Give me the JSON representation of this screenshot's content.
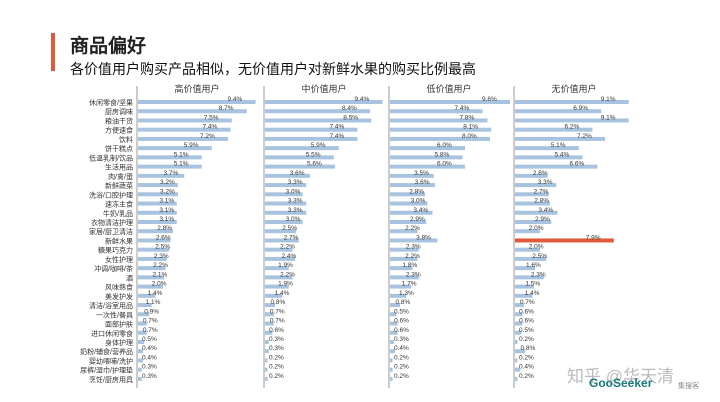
{
  "page": {
    "title": "商品偏好",
    "subtitle": "各价值用户购买产品相似，无价值用户对新鲜水果的购买比例最高",
    "watermark": "知乎 @华天清",
    "brand": "GooSeeker",
    "brand_sub": "集搜客"
  },
  "colors": {
    "bar": "#a7c3df",
    "highlight": "#e0593a",
    "accent": "#e0593a",
    "divider": "#9a9a9a"
  },
  "chart_data": {
    "type": "bar",
    "orientation": "horizontal",
    "categories": [
      "休闲零食/坚果",
      "厨房调味",
      "粮油干货",
      "方便速食",
      "饮料",
      "饼干糕点",
      "低温乳制/饮品",
      "生活用品",
      "肉/禽/蛋",
      "新鲜蔬菜",
      "洗浴/口腔护理",
      "速冻主食",
      "牛奶/乳品",
      "衣物清洁护理",
      "家居/厨卫清洁",
      "新鲜水果",
      "糖果巧克力",
      "女性护理",
      "冲调/咖啡/茶",
      "酒",
      "风味熟食",
      "美发护发",
      "清洁/浴室用品",
      "一次性/餐具",
      "面部护肤",
      "进口休闲零食",
      "身体护理",
      "奶粉/辅食/营养品",
      "婴幼喂哺/洗护",
      "尿裤/湿巾/护理垫",
      "烹饪/厨房用具"
    ],
    "series": [
      {
        "name": "高价值用户",
        "values": [
          9.4,
          8.7,
          7.5,
          7.4,
          7.2,
          5.9,
          5.1,
          5.1,
          3.7,
          3.2,
          3.2,
          3.1,
          3.1,
          3.1,
          2.8,
          2.6,
          2.5,
          2.3,
          2.2,
          2.1,
          2.0,
          1.4,
          1.1,
          0.9,
          0.7,
          0.7,
          0.5,
          0.4,
          0.4,
          0.3,
          0.3
        ]
      },
      {
        "name": "中价值用户",
        "values": [
          9.4,
          8.4,
          8.5,
          7.4,
          7.4,
          5.9,
          5.5,
          5.6,
          3.6,
          3.3,
          3.0,
          3.3,
          3.3,
          3.0,
          2.5,
          2.7,
          2.2,
          2.4,
          1.9,
          2.2,
          1.9,
          1.4,
          0.8,
          0.7,
          0.7,
          0.6,
          0.3,
          0.3,
          0.2,
          0.2,
          0.2
        ]
      },
      {
        "name": "低价值用户",
        "values": [
          9.6,
          7.4,
          7.8,
          8.1,
          8.0,
          6.0,
          5.8,
          6.0,
          3.5,
          3.6,
          2.8,
          3.0,
          3.4,
          2.9,
          2.2,
          3.8,
          2.3,
          2.2,
          1.8,
          2.3,
          1.7,
          1.3,
          0.8,
          0.5,
          0.6,
          0.6,
          0.3,
          0.4,
          0.2,
          0.2,
          0.2
        ]
      },
      {
        "name": "无价值用户",
        "values": [
          9.1,
          6.9,
          9.1,
          6.2,
          7.2,
          5.1,
          5.4,
          6.6,
          2.6,
          3.3,
          2.7,
          2.8,
          3.4,
          2.9,
          2.0,
          7.9,
          2.0,
          2.5,
          1.6,
          2.3,
          1.5,
          1.4,
          0.7,
          0.6,
          0.6,
          0.5,
          0.2,
          0.8,
          0.2,
          0.4,
          0.2
        ]
      }
    ],
    "value_labels": [
      [
        "9.4%",
        "8.7%",
        "7.5%",
        "7.4%",
        "7.2%",
        "5.9%",
        "5.1%",
        "5.1%",
        "3.7%",
        "3.2%",
        "3.2%",
        "3.1%",
        "3.1%",
        "3.1%",
        "2.8%",
        "2.6%",
        "2.5%",
        "2.3%",
        "2.2%",
        "2.1%",
        "2.0%",
        "1.4%",
        "1.1%",
        "0.9%",
        "0.7%",
        "0.7%",
        "0.5%",
        "0.4%",
        "0.4%",
        "0.3%",
        "0.3%"
      ],
      [
        "9.4%",
        "8.4%",
        "8.5%",
        "7.4%",
        "7.4%",
        "5.9%",
        "5.5%",
        "5.6%",
        "3.6%",
        "3.3%",
        "3.0%",
        "3.3%",
        "3.3%",
        "3.0%",
        "2.5%",
        "2.7%",
        "2.2%",
        "2.4%",
        "1.9%",
        "2.2%",
        "1.9%",
        "1.4%",
        "0.8%",
        "0.7%",
        "0.7%",
        "0.6%",
        "0.3%",
        "0.3%",
        "0.2%",
        "0.2%",
        "0.2%"
      ],
      [
        "9.6%",
        "7.4%",
        "7.8%",
        "8.1%",
        "8.0%",
        "6.0%",
        "5.8%",
        "6.0%",
        "3.5%",
        "3.6%",
        "2.8%",
        "3.0%",
        "3.4%",
        "2.9%",
        "2.2%",
        "3.8%",
        "2.3%",
        "2.2%",
        "1.8%",
        "2.3%",
        "1.7%",
        "1.3%",
        "0.8%",
        "0.5%",
        "0.6%",
        "0.6%",
        "0.3%",
        "0.4%",
        "0.2%",
        "0.2%",
        "0.2%"
      ],
      [
        "9.1%",
        "6.9%",
        "9.1%",
        "6.2%",
        "7.2%",
        "5.1%",
        "5.4%",
        "6.6%",
        "2.6%",
        "3.3%",
        "2.7%",
        "2.8%",
        "3.4%",
        "2.9%",
        "2.0%",
        "7.9%",
        "2.0%",
        "2.5%",
        "1.6%",
        "2.3%",
        "1.5%",
        "1.4%",
        "0.7%",
        "0.6%",
        "0.6%",
        "0.5%",
        "0.2%",
        "0.8%",
        "0.2%",
        "0.4%",
        "0.2%"
      ]
    ],
    "highlight": {
      "series": 3,
      "category": 15
    },
    "xlim": [
      0,
      10
    ]
  }
}
